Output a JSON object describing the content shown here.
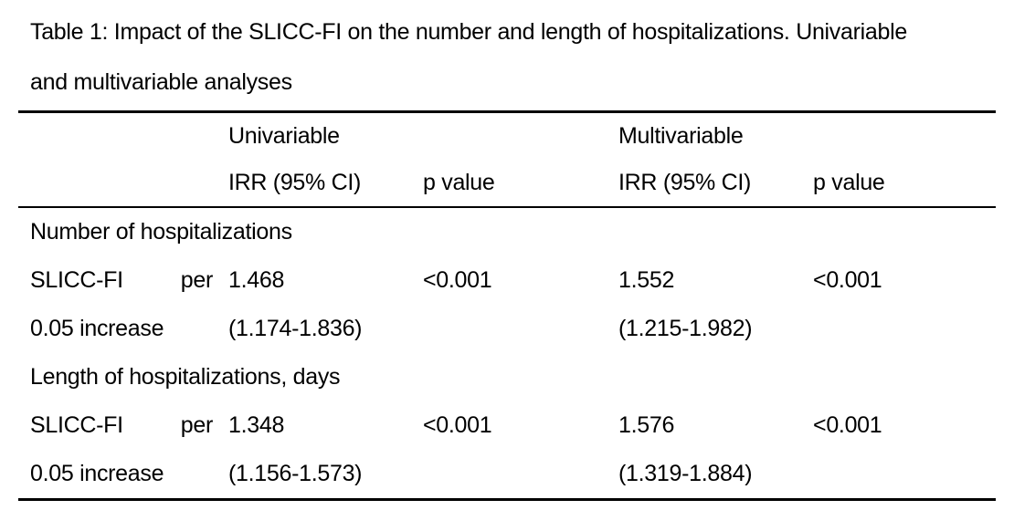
{
  "caption": {
    "line1": "Table 1: Impact of the SLICC-FI on the number and length of hospitalizations. Univariable",
    "line2": "and multivariable analyses"
  },
  "table": {
    "header": {
      "group_univariable": "Univariable",
      "group_multivariable": "Multivariable",
      "col_irr": "IRR (95% CI)",
      "col_p": "p value"
    },
    "sections": [
      {
        "section_label": "Number of hospitalizations",
        "predictor": {
          "line1_left": "SLICC-FI",
          "line1_right": "per",
          "line2": "0.05 increase"
        },
        "univariable": {
          "irr": "1.468",
          "ci": "(1.174-1.836)",
          "p": "<0.001"
        },
        "multivariable": {
          "irr": "1.552",
          "ci": "(1.215-1.982)",
          "p": "<0.001"
        }
      },
      {
        "section_label": "Length of hospitalizations, days",
        "predictor": {
          "line1_left": "SLICC-FI",
          "line1_right": "per",
          "line2": "0.05 increase"
        },
        "univariable": {
          "irr": "1.348",
          "ci": "(1.156-1.573)",
          "p": "<0.001"
        },
        "multivariable": {
          "irr": "1.576",
          "ci": "(1.319-1.884)",
          "p": "<0.001"
        }
      }
    ]
  },
  "colors": {
    "text": "#000000",
    "background": "#ffffff",
    "rule": "#000000"
  }
}
